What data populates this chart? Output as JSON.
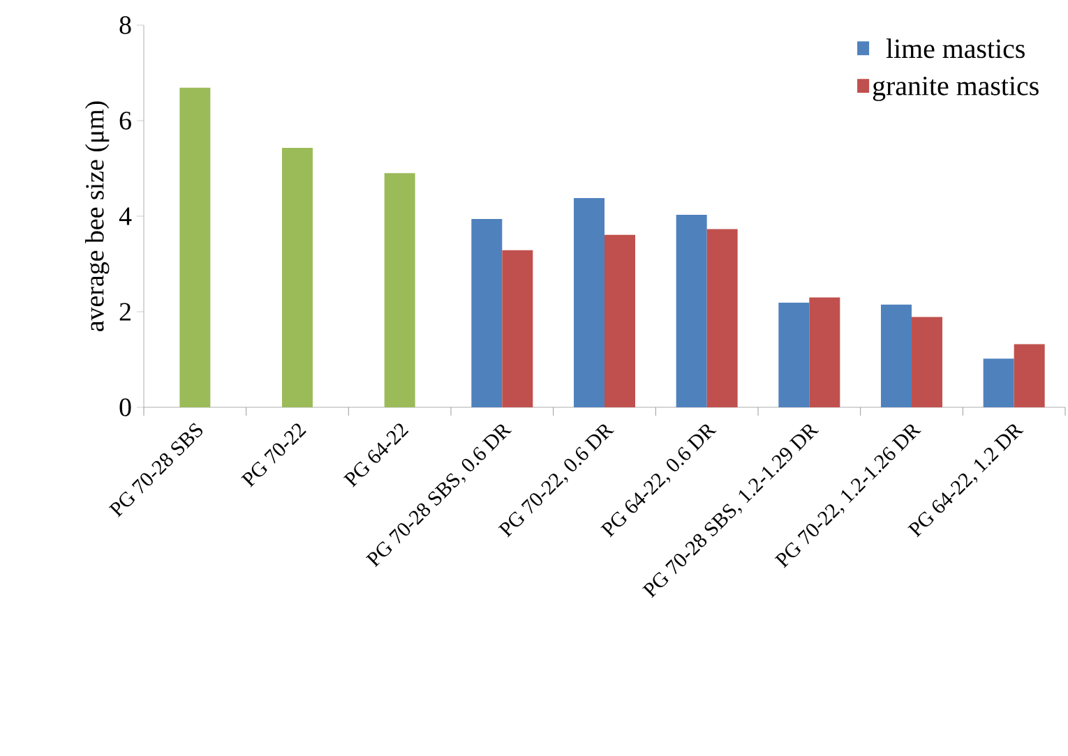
{
  "chart_data": {
    "type": "bar",
    "ylabel": "average bee size (μm)",
    "categories": [
      "PG 70-28 SBS",
      "PG 70-22",
      "PG 64-22",
      "PG 70-28 SBS, 0.6 DR",
      "PG 70-22, 0.6 DR",
      "PG 64-22, 0.6 DR",
      "PG 70-28 SBS, 1.2-1.29 DR",
      "PG 70-22, 1.2-1.26 DR",
      "PG 64-22, 1.2 DR"
    ],
    "series": [
      {
        "color": "#9bbb59",
        "values": [
          6.69,
          5.43,
          4.9,
          null,
          null,
          null,
          null,
          null,
          null
        ]
      },
      {
        "name": "lime mastics",
        "color": "#4f81bd",
        "values": [
          null,
          null,
          null,
          3.94,
          4.38,
          4.03,
          2.19,
          2.15,
          1.02
        ]
      },
      {
        "name": "granite mastics",
        "color": "#c0504d",
        "values": [
          null,
          null,
          null,
          3.29,
          3.61,
          3.73,
          2.3,
          1.89,
          1.32
        ]
      }
    ],
    "ylim": [
      0,
      8
    ],
    "yticks": [
      0,
      2,
      4,
      6,
      8
    ],
    "legend": "top right",
    "grid": false
  }
}
